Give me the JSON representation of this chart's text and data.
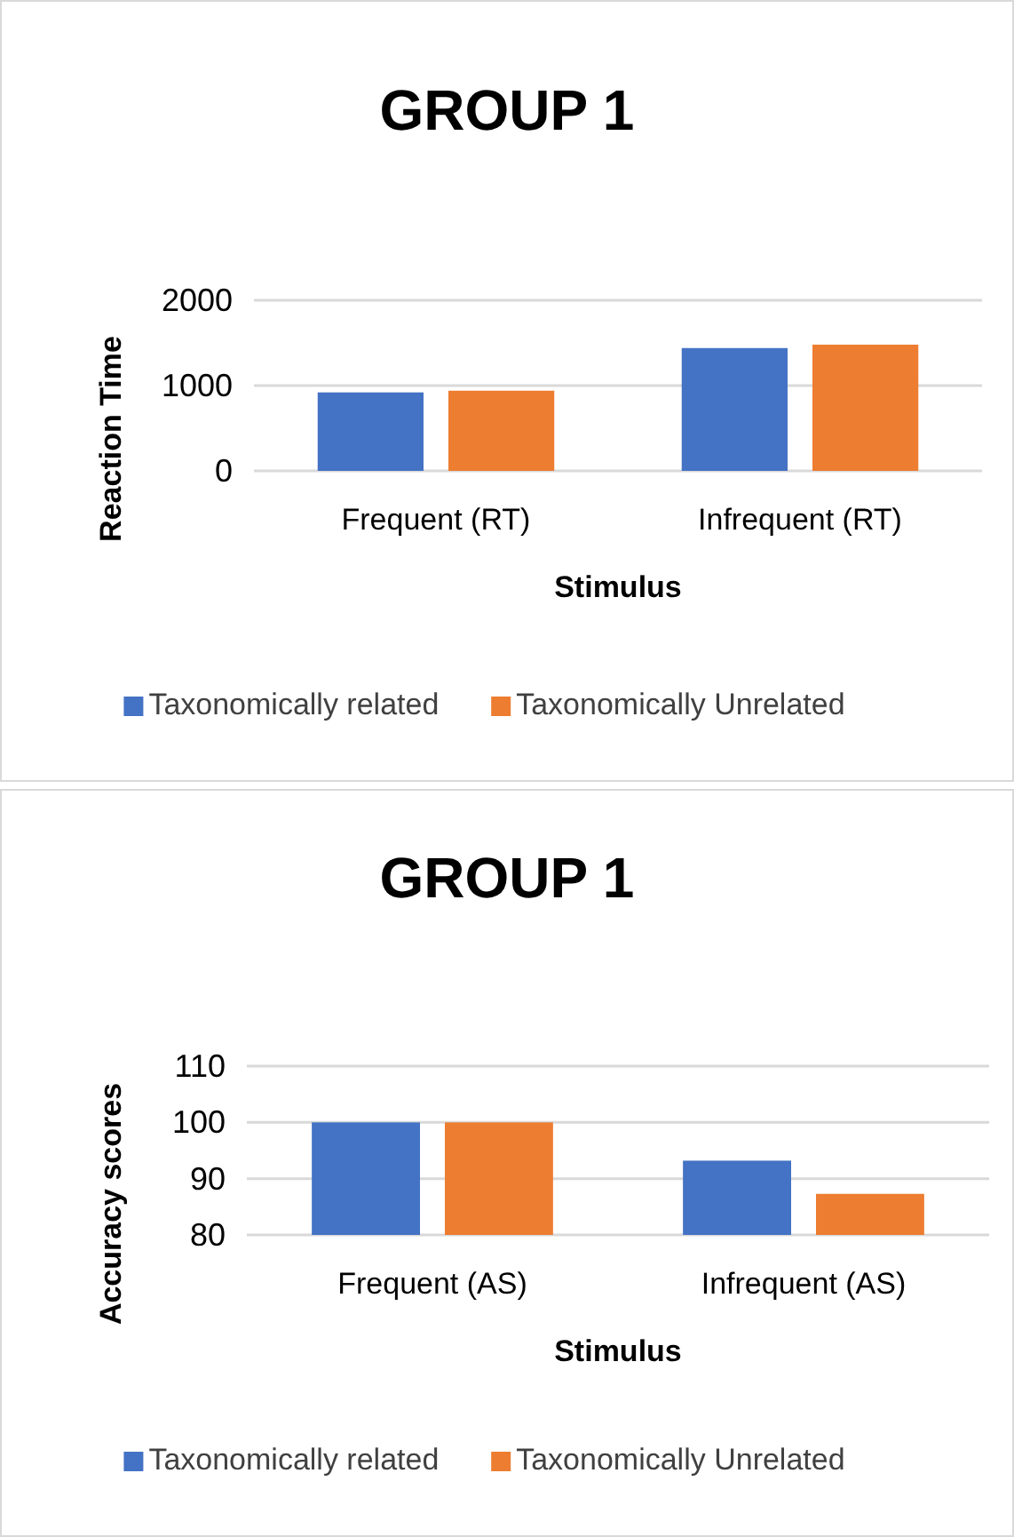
{
  "chart_data": [
    {
      "type": "bar",
      "title": "GROUP 1",
      "xlabel": "Stimulus",
      "ylabel": "Reaction Time",
      "categories": [
        "Frequent (RT)",
        "Infrequent (RT)"
      ],
      "series": [
        {
          "name": "Taxonomically related",
          "color": "#4472c4",
          "values": [
            920,
            1440
          ]
        },
        {
          "name": "Taxonomically Unrelated",
          "color": "#ed7d31",
          "values": [
            940,
            1480
          ]
        }
      ],
      "ylim": [
        0,
        2000
      ],
      "yticks": [
        0,
        1000,
        2000
      ],
      "grid": "y",
      "legend": "bottom"
    },
    {
      "type": "bar",
      "title": "GROUP 1",
      "xlabel": "Stimulus",
      "ylabel": "Accuracy scores",
      "categories": [
        "Frequent (AS)",
        "Infrequent (AS)"
      ],
      "series": [
        {
          "name": "Taxonomically related",
          "color": "#4472c4",
          "values": [
            100,
            93.2
          ]
        },
        {
          "name": "Taxonomically Unrelated",
          "color": "#ed7d31",
          "values": [
            100,
            87.3
          ]
        }
      ],
      "ylim": [
        80,
        110
      ],
      "yticks": [
        80,
        90,
        100,
        110
      ],
      "grid": "y",
      "legend": "bottom"
    }
  ]
}
